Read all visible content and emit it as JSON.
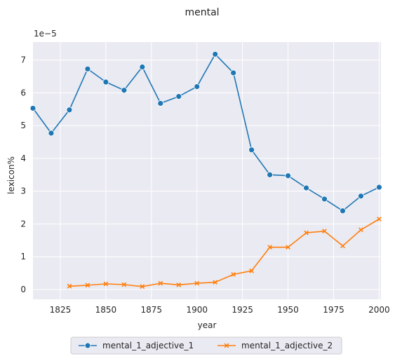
{
  "chart_data": {
    "type": "line",
    "title": "mental",
    "xlabel": "year",
    "ylabel": "lexicon%",
    "y_offset_label": "1e−5",
    "xlim": [
      1810,
      2001
    ],
    "ylim": [
      -0.3,
      7.55
    ],
    "xticks": [
      1825,
      1850,
      1875,
      1900,
      1925,
      1950,
      1975,
      2000
    ],
    "yticks": [
      0,
      1,
      2,
      3,
      4,
      5,
      6,
      7
    ],
    "grid": true,
    "legend_position": "bottom-center",
    "background_color": "#eaeaf2",
    "series": [
      {
        "name": "mental_1_adjective_1",
        "color": "#1f77b4",
        "marker": "circle",
        "x": [
          1810,
          1820,
          1830,
          1840,
          1850,
          1860,
          1870,
          1880,
          1890,
          1900,
          1910,
          1920,
          1930,
          1940,
          1950,
          1960,
          1970,
          1980,
          1990,
          2000
        ],
        "y": [
          5.53,
          4.77,
          5.48,
          6.73,
          6.33,
          6.08,
          6.79,
          5.68,
          5.89,
          6.19,
          7.18,
          6.61,
          4.26,
          3.5,
          3.47,
          3.1,
          2.76,
          2.4,
          2.85,
          3.12
        ]
      },
      {
        "name": "mental_1_adjective_2",
        "color": "#ff7f0e",
        "marker": "x",
        "x": [
          1830,
          1840,
          1850,
          1860,
          1870,
          1880,
          1890,
          1900,
          1910,
          1920,
          1930,
          1940,
          1950,
          1960,
          1970,
          1980,
          1990,
          2000
        ],
        "y": [
          0.1,
          0.13,
          0.17,
          0.15,
          0.09,
          0.19,
          0.14,
          0.19,
          0.22,
          0.46,
          0.57,
          1.29,
          1.29,
          1.73,
          1.78,
          1.33,
          1.82,
          2.15
        ]
      }
    ]
  }
}
